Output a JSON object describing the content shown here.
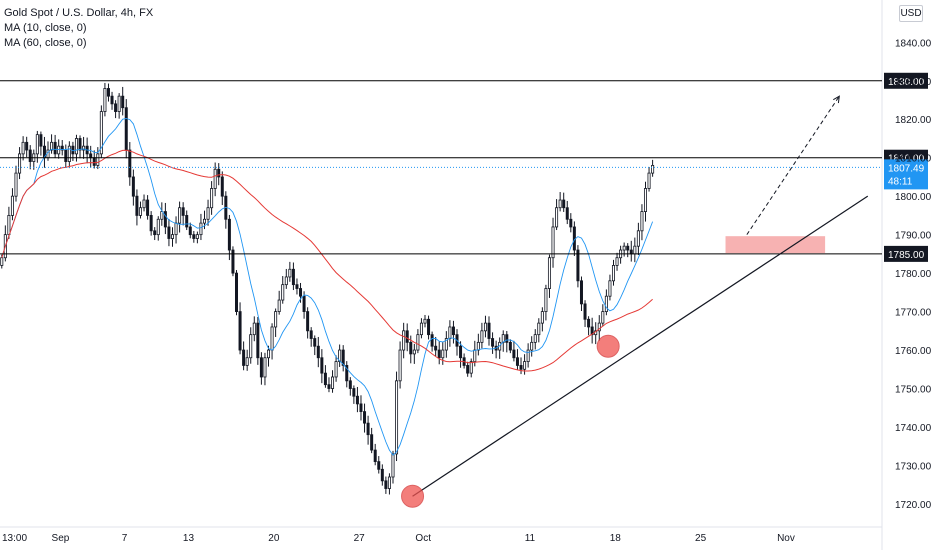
{
  "header": {
    "symbol_line": "Gold Spot / U.S. Dollar, 4h, FX",
    "indicators": [
      "MA (10, close, 0)",
      "MA (60, close, 0)"
    ],
    "currency_button": "USD"
  },
  "colors": {
    "up": "#131722",
    "down": "#131722",
    "ma10": "#2196f3",
    "ma60": "#e53935",
    "level_line": "#000000",
    "price_line": "#2196f3",
    "zone": "#f6a5a5",
    "circle": "#ef5350"
  },
  "chart_data": {
    "type": "candlestick",
    "title": "Gold Spot / U.S. Dollar, 4h, FX",
    "ylim": [
      1714,
      1851
    ],
    "y_ticks": [
      1720,
      1730,
      1740,
      1750,
      1760,
      1770,
      1780,
      1790,
      1800,
      1810,
      1820,
      1830,
      1840
    ],
    "x_ticks": [
      {
        "label": "13:00",
        "x": 0
      },
      {
        "label": "Sep",
        "x": 17
      },
      {
        "label": "7",
        "x": 35
      },
      {
        "label": "13",
        "x": 53
      },
      {
        "label": "20",
        "x": 77
      },
      {
        "label": "27",
        "x": 101
      },
      {
        "label": "Oct",
        "x": 119
      },
      {
        "label": "11",
        "x": 149
      },
      {
        "label": "18",
        "x": 173
      },
      {
        "label": "25",
        "x": 197
      },
      {
        "label": "Nov",
        "x": 221
      }
    ],
    "x_max": 248,
    "candles_x_start": 0,
    "close_path": [
      1784,
      1790,
      1795,
      1800,
      1806,
      1811,
      1814,
      1812,
      1809,
      1811,
      1816,
      1813,
      1810,
      1812,
      1814,
      1811,
      1813,
      1812,
      1809,
      1813,
      1811,
      1815,
      1812,
      1813,
      1811,
      1810,
      1808,
      1811,
      1822,
      1828,
      1826,
      1824,
      1822,
      1826,
      1823,
      1812,
      1805,
      1800,
      1795,
      1797,
      1799,
      1795,
      1791,
      1790,
      1794,
      1796,
      1792,
      1789,
      1790,
      1793,
      1797,
      1795,
      1792,
      1790,
      1789,
      1790,
      1793,
      1794,
      1797,
      1802,
      1807,
      1805,
      1800,
      1794,
      1786,
      1780,
      1770,
      1760,
      1756,
      1758,
      1764,
      1767,
      1758,
      1753,
      1758,
      1760,
      1766,
      1770,
      1773,
      1777,
      1779,
      1781,
      1777,
      1776,
      1774,
      1770,
      1765,
      1763,
      1761,
      1758,
      1754,
      1751,
      1750,
      1753,
      1757,
      1760,
      1756,
      1752,
      1750,
      1748,
      1746,
      1744,
      1741,
      1738,
      1734,
      1731,
      1729,
      1726,
      1724,
      1727,
      1733,
      1752,
      1760,
      1765,
      1762,
      1759,
      1760,
      1764,
      1767,
      1768,
      1764,
      1761,
      1760,
      1758,
      1760,
      1763,
      1766,
      1764,
      1761,
      1758,
      1756,
      1754,
      1757,
      1760,
      1762,
      1765,
      1767,
      1763,
      1761,
      1760,
      1762,
      1764,
      1762,
      1760,
      1758,
      1756,
      1755,
      1757,
      1760,
      1762,
      1764,
      1767,
      1770,
      1776,
      1784,
      1792,
      1797,
      1799,
      1797,
      1794,
      1792,
      1786,
      1778,
      1772,
      1768,
      1766,
      1764,
      1765,
      1767,
      1770,
      1774,
      1778,
      1782,
      1784,
      1786,
      1787,
      1786,
      1785,
      1787,
      1791,
      1796,
      1802,
      1806,
      1808
    ],
    "series": [
      {
        "name": "MA (10, close, 0)",
        "color": "#2196f3"
      },
      {
        "name": "MA (60, close, 0)",
        "color": "#e53935"
      }
    ],
    "horizontal_levels": [
      {
        "value": 1830,
        "label": "1830.00"
      },
      {
        "value": 1810,
        "label": "1810.00"
      },
      {
        "value": 1785,
        "label": "1785.00"
      }
    ],
    "last_price": {
      "value": 1807.49,
      "label": "1807.49",
      "countdown": "48:11"
    },
    "zone": {
      "x0": 204,
      "x1": 232,
      "y0": 1785.2,
      "y1": 1789.6
    },
    "trendline": {
      "x0": 116,
      "y0": 1722,
      "x1": 244,
      "y1": 1800
    },
    "projection": {
      "x0": 210,
      "y0": 1790,
      "x1": 236,
      "y1": 1826
    },
    "circles": [
      {
        "x": 116,
        "y": 1722
      },
      {
        "x": 171,
        "y": 1761
      }
    ]
  }
}
